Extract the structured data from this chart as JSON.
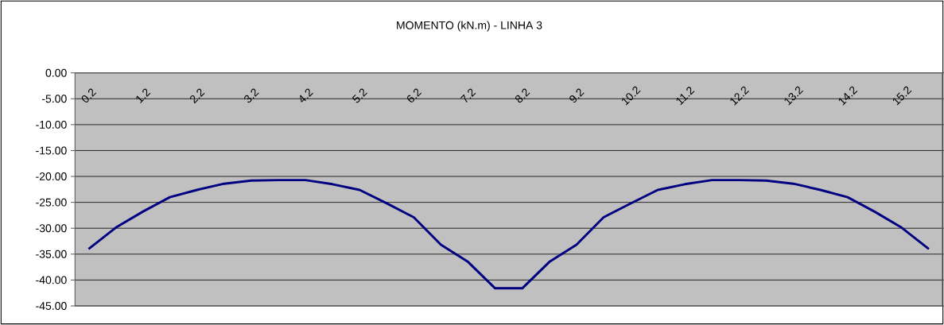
{
  "chart_data": {
    "type": "line",
    "title": "MOMENTO (kN.m) - LINHA 3",
    "categories": [
      "0.2",
      null,
      "1.2",
      null,
      "2.2",
      null,
      "3.2",
      null,
      "4.2",
      null,
      "5.2",
      null,
      "6.2",
      null,
      "7.2",
      null,
      "8.2",
      null,
      "9.2",
      null,
      "10.2",
      null,
      "11.2",
      null,
      "12.2",
      null,
      "13.2",
      null,
      "14.2",
      null,
      "15.2",
      null
    ],
    "series": [
      {
        "color": "#000080",
        "values": [
          -34.0,
          -29.9,
          -26.8,
          -24.0,
          -22.6,
          -21.4,
          -20.8,
          -20.7,
          -20.7,
          -21.5,
          -22.6,
          -25.2,
          -27.9,
          -33.2,
          -36.5,
          -41.6,
          -41.6,
          -36.5,
          -33.2,
          -27.9,
          -25.2,
          -22.6,
          -21.5,
          -20.7,
          -20.7,
          -20.8,
          -21.4,
          -22.6,
          -24.0,
          -26.8,
          -29.9,
          -34.0
        ]
      }
    ],
    "ylim": [
      -45,
      0
    ],
    "yticks": [
      {
        "value": 0,
        "label": "0.00"
      },
      {
        "value": -5,
        "label": "-5.00"
      },
      {
        "value": -10,
        "label": "-10.00"
      },
      {
        "value": -15,
        "label": "-15.00"
      },
      {
        "value": -20,
        "label": "-20.00"
      },
      {
        "value": -25,
        "label": "-25.00"
      },
      {
        "value": -30,
        "label": "-30.00"
      },
      {
        "value": -35,
        "label": "-35.00"
      },
      {
        "value": -40,
        "label": "-40.00"
      },
      {
        "value": -45,
        "label": "-45.00"
      }
    ],
    "grid": "y"
  }
}
